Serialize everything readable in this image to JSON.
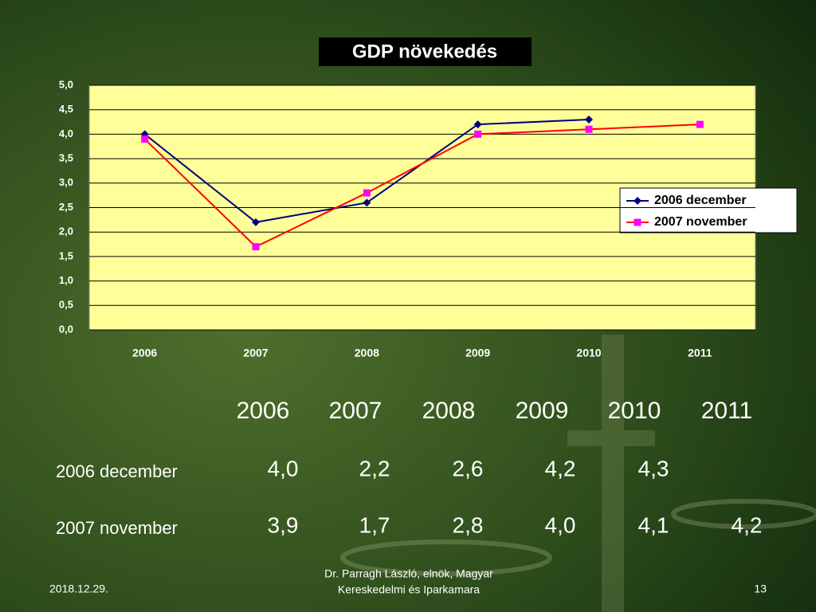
{
  "chart_data": {
    "type": "line",
    "title": "GDP növekedés",
    "categories": [
      "2006",
      "2007",
      "2008",
      "2009",
      "2010",
      "2011"
    ],
    "series": [
      {
        "name": "2006 december",
        "color": "#000080",
        "marker": "diamond",
        "marker_color": "#000080",
        "values": [
          4.0,
          2.2,
          2.6,
          4.2,
          4.3,
          null
        ]
      },
      {
        "name": "2007 november",
        "color": "#ff0000",
        "marker": "square",
        "marker_color": "#ff00ff",
        "values": [
          3.9,
          1.7,
          2.8,
          4.0,
          4.1,
          4.2
        ]
      }
    ],
    "ylim": [
      0,
      5
    ],
    "yticks": [
      {
        "value": 0,
        "label": "0,0"
      },
      {
        "value": 0.5,
        "label": "0,5"
      },
      {
        "value": 1,
        "label": "1,0"
      },
      {
        "value": 1.5,
        "label": "1,5"
      },
      {
        "value": 2,
        "label": "2,0"
      },
      {
        "value": 2.5,
        "label": "2,5"
      },
      {
        "value": 3,
        "label": "3,0"
      },
      {
        "value": 3.5,
        "label": "3,5"
      },
      {
        "value": 4,
        "label": "4,0"
      },
      {
        "value": 4.5,
        "label": "4,5"
      },
      {
        "value": 5,
        "label": "5,0"
      }
    ],
    "grid": true,
    "legend": "right",
    "plot_color": "#ffff99"
  },
  "table": {
    "header": [
      "2006",
      "2007",
      "2008",
      "2009",
      "2010",
      "2011"
    ],
    "rows": [
      {
        "name": "2006 december",
        "cells": [
          "4,0",
          "2,2",
          "2,6",
          "4,2",
          "4,3",
          null
        ]
      },
      {
        "name": "2007 november",
        "cells": [
          "3,9",
          "1,7",
          "2,8",
          "4,0",
          "4,1",
          "4,2"
        ]
      }
    ]
  },
  "footer": {
    "date": "2018.12.29.",
    "author": [
      "Dr. Parragh László, elnök, Magyar",
      "Kereskedelmi és Iparkamara"
    ],
    "page": "13"
  }
}
